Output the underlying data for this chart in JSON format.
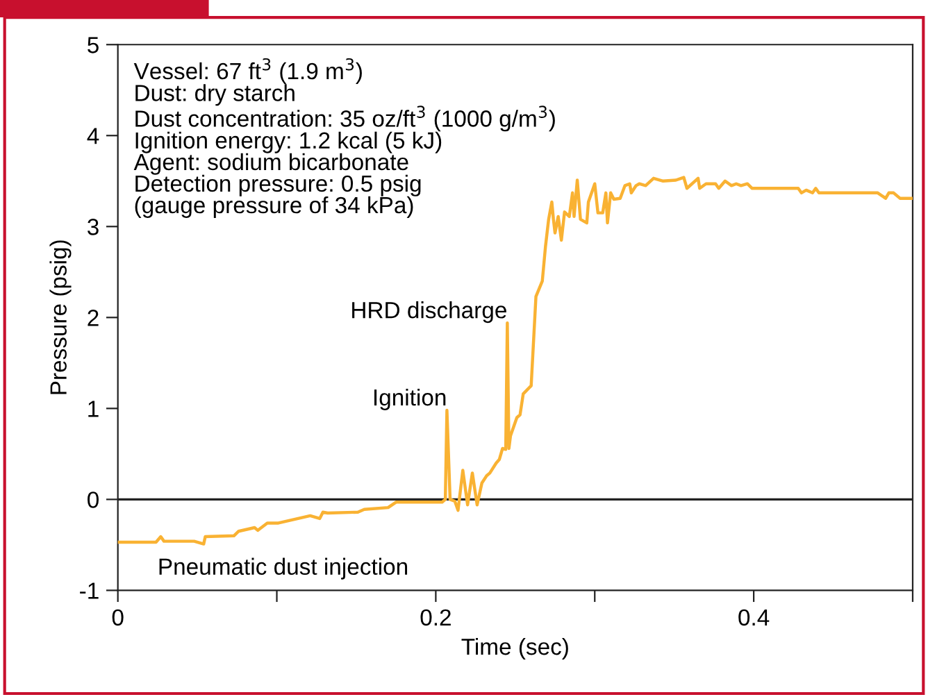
{
  "chart_data": {
    "type": "line",
    "xlabel": "Time (sec)",
    "ylabel": "Pressure (psig)",
    "xlim": [
      0,
      0.5
    ],
    "xticks": [
      0,
      {
        "value": 0.1,
        "label": null
      },
      0.2,
      {
        "value": 0.3,
        "label": null
      },
      0.4,
      {
        "value": 0.5,
        "label": null
      }
    ],
    "ylim": [
      -1,
      5
    ],
    "yticks": [
      -1,
      0,
      1,
      2,
      3,
      4,
      5
    ],
    "grid": false,
    "legend": false,
    "marker": "none",
    "line_style": "solid",
    "ref_lines": [
      {
        "axis": "y",
        "value": 0,
        "color": "#222222"
      }
    ],
    "annotations": [
      "Vessel: 67 ft$^{3}$ (1.9 m$^{3}$)\nDust: dry starch\nDust concentration: 35 oz/ft$^{3}$ (1000 g/m$^{3}$)\nIgnition energy: 1.2 kcal (5 kJ)\nAgent: sodium bicarbonate\nDetection pressure: 0.5 psig\n(gauge pressure of 34 kPa)",
      {
        "text": "HRD discharge",
        "x": 0.245,
        "y": 1.94
      },
      {
        "text": "Ignition",
        "x": 0.207,
        "y": 0.98
      },
      "Pneumatic dust injection"
    ],
    "series": [
      {
        "color": "#f9b233",
        "x": [
          0,
          0.024,
          0.027,
          0.029,
          0.048,
          0.054,
          0.055,
          0.073,
          0.076,
          0.086,
          0.088,
          0.094,
          0.101,
          0.121,
          0.127,
          0.129,
          0.132,
          0.151,
          0.155,
          0.17,
          0.175,
          0.204,
          0.206,
          0.207,
          0.209,
          0.212,
          0.214,
          0.217,
          0.22,
          0.223,
          0.226,
          0.229,
          0.232,
          0.234,
          0.238,
          0.24,
          0.242,
          0.244,
          0.245,
          0.246,
          0.247,
          0.251,
          0.253,
          0.255,
          0.26,
          0.263,
          0.267,
          0.269,
          0.271,
          0.273,
          0.274,
          0.275,
          0.277,
          0.279,
          0.281,
          0.284,
          0.286,
          0.287,
          0.289,
          0.291,
          0.295,
          0.296,
          0.3,
          0.302,
          0.305,
          0.307,
          0.308,
          0.31,
          0.312,
          0.316,
          0.319,
          0.322,
          0.323,
          0.326,
          0.328,
          0.332,
          0.337,
          0.343,
          0.351,
          0.356,
          0.358,
          0.365,
          0.366,
          0.37,
          0.376,
          0.378,
          0.382,
          0.386,
          0.389,
          0.392,
          0.396,
          0.399,
          0.428,
          0.43,
          0.433,
          0.437,
          0.439,
          0.441,
          0.478,
          0.483,
          0.485,
          0.488,
          0.492,
          0.5
        ],
        "values": [
          -0.47,
          -0.47,
          -0.41,
          -0.46,
          -0.46,
          -0.49,
          -0.41,
          -0.4,
          -0.35,
          -0.31,
          -0.34,
          -0.26,
          -0.26,
          -0.18,
          -0.21,
          -0.14,
          -0.15,
          -0.14,
          -0.11,
          -0.09,
          -0.03,
          -0.03,
          0,
          0.98,
          0,
          -0.02,
          -0.12,
          0.32,
          -0.06,
          0.29,
          -0.06,
          0.18,
          0.26,
          0.29,
          0.4,
          0.44,
          0.56,
          0.55,
          1.94,
          0.56,
          0.7,
          0.9,
          0.93,
          1.16,
          1.25,
          2.23,
          2.4,
          2.78,
          3.08,
          3.27,
          3.08,
          2.93,
          3.11,
          2.85,
          3.16,
          3.11,
          3.37,
          3.11,
          3.51,
          3.08,
          3.04,
          3.27,
          3.47,
          3.15,
          3.15,
          3.37,
          3.04,
          3.37,
          3.3,
          3.31,
          3.45,
          3.47,
          3.37,
          3.45,
          3.47,
          3.45,
          3.53,
          3.5,
          3.51,
          3.54,
          3.42,
          3.53,
          3.42,
          3.47,
          3.47,
          3.42,
          3.5,
          3.45,
          3.47,
          3.45,
          3.47,
          3.42,
          3.42,
          3.37,
          3.4,
          3.37,
          3.42,
          3.37,
          3.37,
          3.31,
          3.37,
          3.37,
          3.31,
          3.31
        ]
      }
    ]
  }
}
